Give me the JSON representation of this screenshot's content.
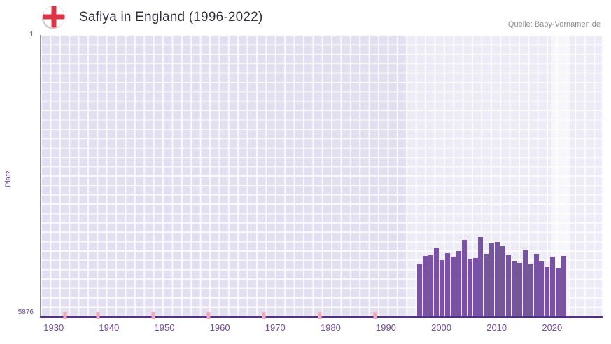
{
  "chart_data": {
    "type": "bar",
    "title": "Safiya in England (1996-2022)",
    "source": "Quelle: Baby-Vornamen.de",
    "ylabel": "Platz",
    "y_axis": {
      "top_label": "1",
      "bottom_label": "5876",
      "min": 1,
      "max": 5876,
      "inverted": true
    },
    "x_axis": {
      "domain": [
        1927.5,
        2029
      ],
      "ticks": [
        1930,
        1940,
        1950,
        1960,
        1970,
        1980,
        1990,
        2000,
        2010,
        2020
      ]
    },
    "grid": true,
    "legend": false,
    "highlight_regions": [
      {
        "name": "data-period",
        "from": 1993.5,
        "to": 2029
      },
      {
        "name": "recent-years",
        "from": 2019.6,
        "to": 2023
      }
    ],
    "minor_marker_years": [
      1932,
      1938,
      1948,
      1958,
      1968,
      1978,
      1988
    ],
    "colors": {
      "bar": "#7852a6",
      "plot_background": "#e2dff0",
      "axis": "#4e3187",
      "tick_text": "#6f4da4",
      "marker": "#f2a9ba",
      "flag_cross": "#dd3344"
    },
    "series": [
      {
        "name": "Platz",
        "data": [
          {
            "year": 1996,
            "rank": 4800
          },
          {
            "year": 1997,
            "rank": 4620
          },
          {
            "year": 1998,
            "rank": 4600
          },
          {
            "year": 1999,
            "rank": 4450
          },
          {
            "year": 2000,
            "rank": 4700
          },
          {
            "year": 2001,
            "rank": 4560
          },
          {
            "year": 2002,
            "rank": 4640
          },
          {
            "year": 2003,
            "rank": 4510
          },
          {
            "year": 2004,
            "rank": 4290
          },
          {
            "year": 2005,
            "rank": 4680
          },
          {
            "year": 2006,
            "rank": 4660
          },
          {
            "year": 2007,
            "rank": 4230
          },
          {
            "year": 2008,
            "rank": 4580
          },
          {
            "year": 2009,
            "rank": 4360
          },
          {
            "year": 2010,
            "rank": 4330
          },
          {
            "year": 2011,
            "rank": 4410
          },
          {
            "year": 2012,
            "rank": 4600
          },
          {
            "year": 2013,
            "rank": 4720
          },
          {
            "year": 2014,
            "rank": 4760
          },
          {
            "year": 2015,
            "rank": 4500
          },
          {
            "year": 2016,
            "rank": 4800
          },
          {
            "year": 2017,
            "rank": 4570
          },
          {
            "year": 2018,
            "rank": 4740
          },
          {
            "year": 2019,
            "rank": 4860
          },
          {
            "year": 2020,
            "rank": 4640
          },
          {
            "year": 2021,
            "rank": 4880
          },
          {
            "year": 2022,
            "rank": 4620
          }
        ]
      }
    ]
  }
}
